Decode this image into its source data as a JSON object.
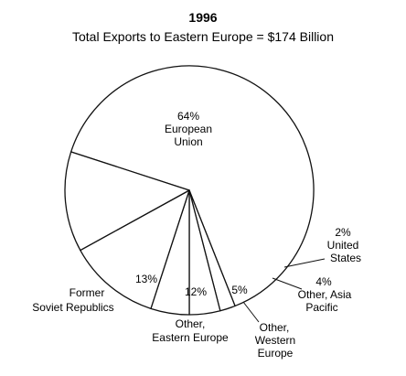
{
  "chart_data": {
    "type": "pie",
    "title": "1996",
    "subtitle": "Total Exports to Eastern Europe = $174 Billion",
    "slices": [
      {
        "pct_label": "64%",
        "name_lines": [
          "European",
          "Union"
        ],
        "value": 64
      },
      {
        "pct_label": "2%",
        "name_lines": [
          "United",
          "States"
        ],
        "value": 2
      },
      {
        "pct_label": "4%",
        "name_lines": [
          "Other, Asia",
          "Pacific"
        ],
        "value": 4
      },
      {
        "pct_label": "5%",
        "name_lines": [
          "Other,",
          "Western",
          "Europe"
        ],
        "value": 5
      },
      {
        "pct_label": "12%",
        "name_lines": [
          "Other,",
          "Eastern Europe"
        ],
        "value": 12
      },
      {
        "pct_label": "13%",
        "name_lines": [
          "Former",
          "Soviet Republics"
        ],
        "value": 13
      }
    ]
  }
}
